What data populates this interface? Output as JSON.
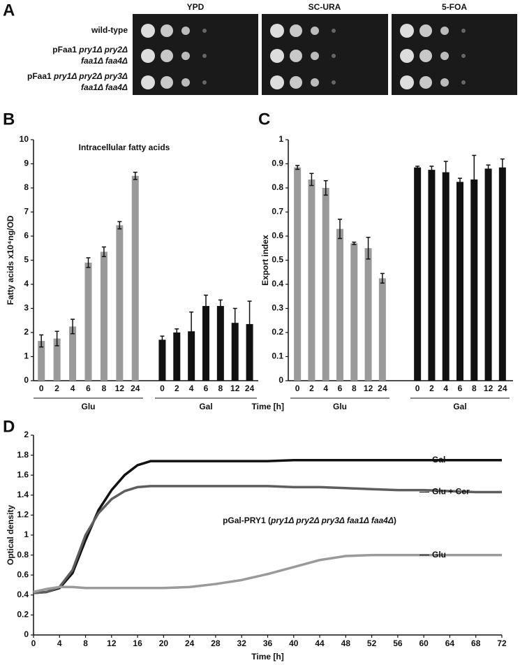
{
  "panel_letters": [
    "A",
    "B",
    "C",
    "D"
  ],
  "panel_a": {
    "media": [
      "YPD",
      "SC-URA",
      "5-FOA"
    ],
    "strains": [
      [
        [
          {
            "text": "wild-type"
          }
        ]
      ],
      [
        [
          {
            "text": "pFaa1 "
          },
          {
            "text": "pry1Δ pry2Δ",
            "italic": true
          }
        ],
        [
          {
            "text": "faa1Δ faa4Δ",
            "italic": true
          }
        ]
      ],
      [
        [
          {
            "text": "pFaa1 "
          },
          {
            "text": "pry1Δ pry2Δ pry3Δ",
            "italic": true
          }
        ],
        [
          {
            "text": "faa1Δ faa4Δ",
            "italic": true
          }
        ]
      ]
    ]
  },
  "chart_data": [
    {
      "type": "bar",
      "annotation": "Intracellular fatty acids",
      "ylabel": "Fatty acids x10⁴ng/OD",
      "ylim": [
        0,
        10
      ],
      "yticks": [
        0,
        1,
        2,
        3,
        4,
        5,
        6,
        7,
        8,
        9,
        10
      ],
      "series": [
        {
          "name": "Glu",
          "color": "#9a9a9a",
          "categories": [
            "0",
            "2",
            "4",
            "6",
            "8",
            "12",
            "24"
          ],
          "values": [
            1.65,
            1.75,
            2.25,
            4.9,
            5.35,
            6.45,
            8.5
          ],
          "errors": [
            0.25,
            0.3,
            0.3,
            0.2,
            0.2,
            0.15,
            0.15
          ]
        },
        {
          "name": "Gal",
          "color": "#111111",
          "categories": [
            "0",
            "2",
            "4",
            "6",
            "8",
            "12",
            "24"
          ],
          "values": [
            1.7,
            2.0,
            2.05,
            3.1,
            3.1,
            2.4,
            2.35
          ],
          "errors": [
            0.15,
            0.15,
            0.8,
            0.45,
            0.25,
            0.6,
            0.95
          ]
        }
      ]
    },
    {
      "type": "bar",
      "ylabel": "Export index",
      "xlabel": "Time [h]",
      "ylim": [
        0,
        1
      ],
      "yticks": [
        0,
        0.1,
        0.2,
        0.3,
        0.4,
        0.5,
        0.6,
        0.7,
        0.8,
        0.9,
        1
      ],
      "series": [
        {
          "name": "Glu",
          "color": "#9a9a9a",
          "categories": [
            "0",
            "2",
            "4",
            "6",
            "8",
            "12",
            "24"
          ],
          "values": [
            0.885,
            0.835,
            0.8,
            0.63,
            0.57,
            0.55,
            0.425
          ],
          "errors": [
            0.008,
            0.025,
            0.03,
            0.04,
            0.005,
            0.045,
            0.02
          ]
        },
        {
          "name": "Gal",
          "color": "#111111",
          "categories": [
            "0",
            "2",
            "4",
            "6",
            "8",
            "12",
            "24"
          ],
          "values": [
            0.885,
            0.875,
            0.865,
            0.825,
            0.835,
            0.88,
            0.885
          ],
          "errors": [
            0.005,
            0.015,
            0.045,
            0.015,
            0.1,
            0.015,
            0.035
          ]
        }
      ]
    },
    {
      "type": "line",
      "xlabel": "Time [h]",
      "ylabel": "Optical density",
      "annotation": [
        {
          "text": "pGal-PRY1 ("
        },
        {
          "text": "pry1Δ pry2Δ pry3Δ faa1Δ faa4Δ",
          "italic": true
        },
        {
          "text": ")"
        }
      ],
      "xlim": [
        0,
        72
      ],
      "xticks": [
        0,
        4,
        8,
        12,
        16,
        20,
        24,
        28,
        32,
        36,
        40,
        44,
        48,
        52,
        56,
        60,
        64,
        68,
        72
      ],
      "ylim": [
        0,
        2
      ],
      "yticks": [
        0,
        0.2,
        0.4,
        0.6,
        0.8,
        1,
        1.2,
        1.4,
        1.6,
        1.8,
        2
      ],
      "x": [
        0,
        2,
        4,
        6,
        8,
        10,
        12,
        14,
        16,
        18,
        20,
        24,
        28,
        32,
        36,
        40,
        44,
        48,
        52,
        56,
        60,
        64,
        68,
        72
      ],
      "series": [
        {
          "name": "Gal",
          "color": "#111111",
          "values": [
            0.42,
            0.43,
            0.47,
            0.62,
            0.95,
            1.25,
            1.45,
            1.6,
            1.7,
            1.74,
            1.74,
            1.74,
            1.74,
            1.74,
            1.74,
            1.75,
            1.75,
            1.75,
            1.75,
            1.75,
            1.75,
            1.75,
            1.75,
            1.75
          ]
        },
        {
          "name": "Glu + Cer",
          "color": "#5e5e5e",
          "values": [
            0.42,
            0.43,
            0.48,
            0.65,
            1.0,
            1.22,
            1.36,
            1.44,
            1.48,
            1.49,
            1.49,
            1.49,
            1.49,
            1.49,
            1.49,
            1.48,
            1.48,
            1.47,
            1.46,
            1.45,
            1.45,
            1.44,
            1.43,
            1.43
          ]
        },
        {
          "name": "Glu",
          "color": "#9a9a9a",
          "values": [
            0.43,
            0.46,
            0.48,
            0.48,
            0.47,
            0.47,
            0.47,
            0.47,
            0.47,
            0.47,
            0.47,
            0.48,
            0.51,
            0.55,
            0.61,
            0.68,
            0.75,
            0.79,
            0.8,
            0.8,
            0.8,
            0.8,
            0.8,
            0.8
          ]
        }
      ]
    }
  ]
}
